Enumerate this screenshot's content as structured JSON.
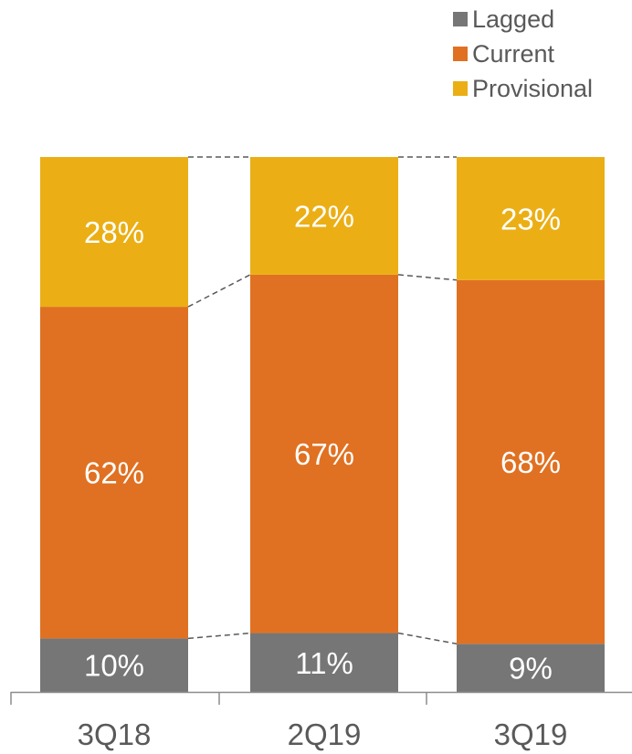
{
  "chart_data": {
    "type": "bar",
    "stacked": true,
    "categories": [
      "3Q18",
      "2Q19",
      "3Q19"
    ],
    "series": [
      {
        "name": "Lagged",
        "values": [
          10,
          11,
          9
        ],
        "labels": [
          "10%",
          "11%",
          "9%"
        ],
        "color": "#767676"
      },
      {
        "name": "Current",
        "values": [
          62,
          67,
          68
        ],
        "labels": [
          "62%",
          "67%",
          "68%"
        ],
        "color": "#E07122"
      },
      {
        "name": "Provisional",
        "values": [
          28,
          22,
          23
        ],
        "labels": [
          "28%",
          "22%",
          "23%"
        ],
        "color": "#EBAF15"
      }
    ],
    "legend_order": [
      "Lagged",
      "Current",
      "Provisional"
    ],
    "legend_position": "top-right",
    "ylim": [
      0,
      100
    ],
    "y_axis_visible": false,
    "grid": false,
    "connector_lines": "dashed",
    "title": "",
    "xlabel": "",
    "ylabel": ""
  }
}
